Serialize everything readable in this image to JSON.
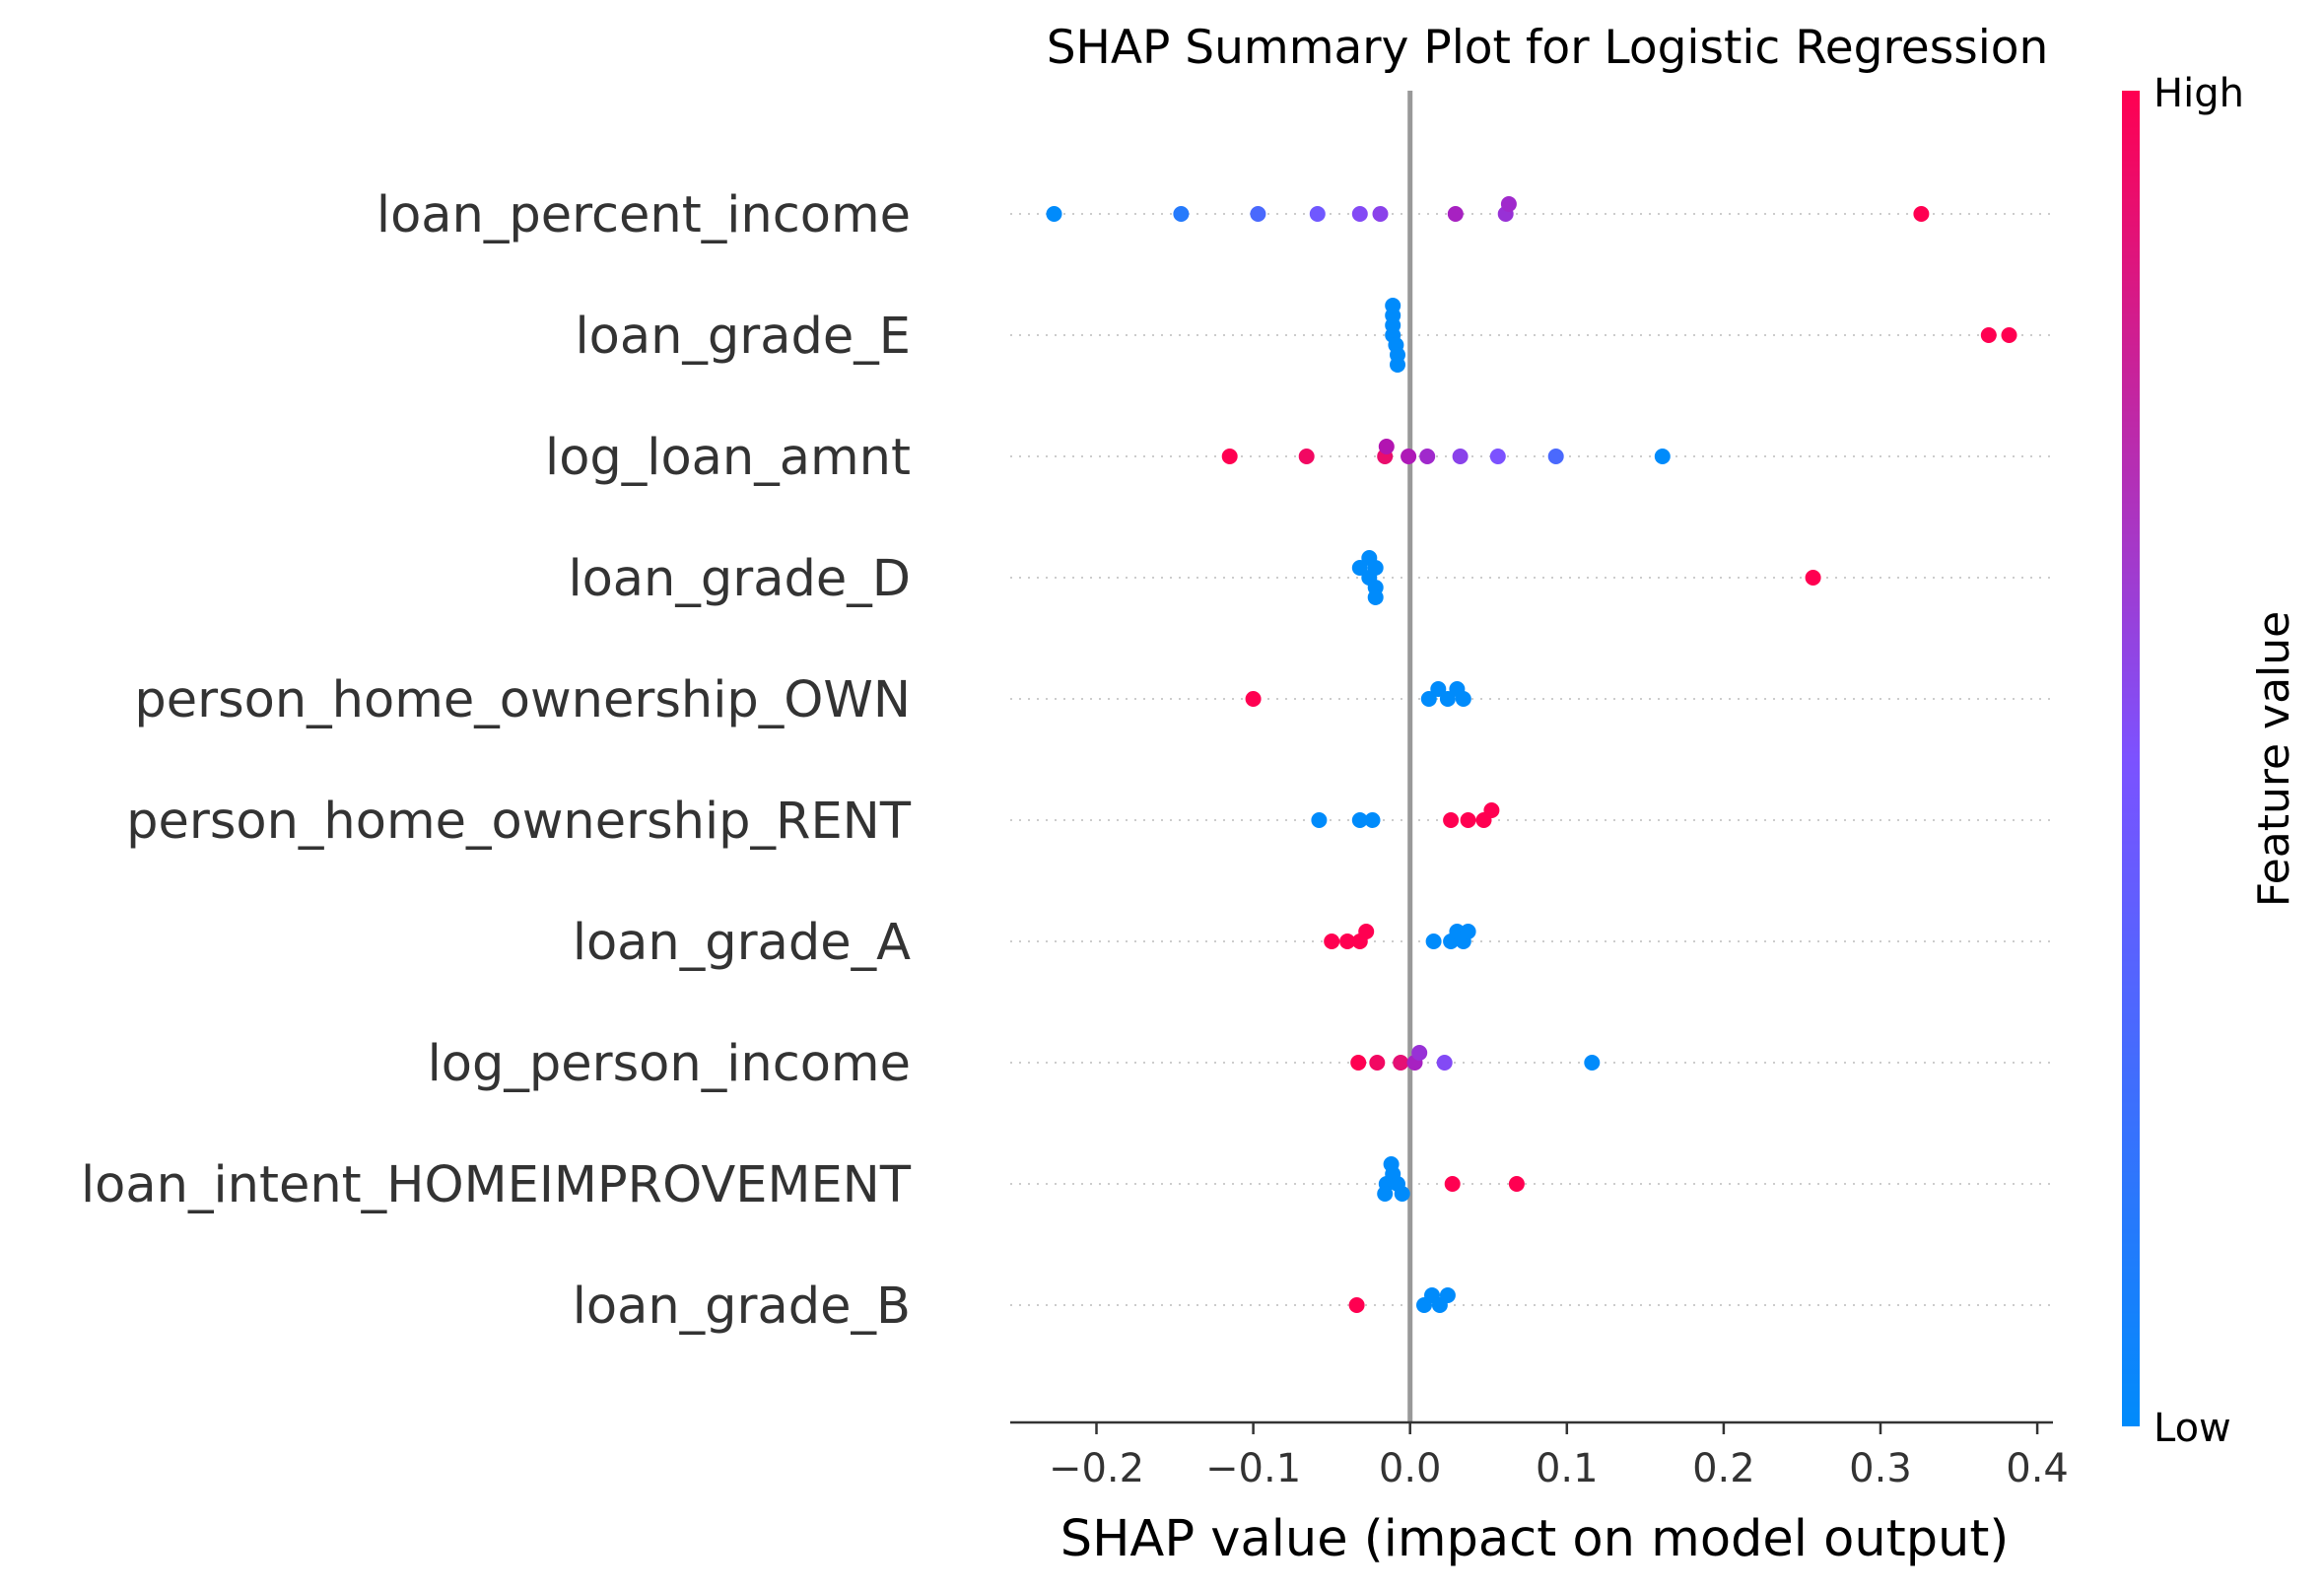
{
  "chart_data": {
    "type": "scatter",
    "title": "SHAP Summary Plot for Logistic Regression",
    "xlabel": "SHAP value (impact on model output)",
    "xlim": [
      -0.255,
      0.41
    ],
    "xticks": [
      -0.2,
      -0.1,
      0.0,
      0.1,
      0.2,
      0.3,
      0.4
    ],
    "xtick_labels": [
      "−0.2",
      "−0.1",
      "0.0",
      "0.1",
      "0.2",
      "0.3",
      "0.4"
    ],
    "colorbar": {
      "label": "Feature value",
      "high_label": "High",
      "low_label": "Low",
      "low_color": "#008bfb",
      "high_color": "#ff0051",
      "mid_color": "#c30098"
    },
    "features": [
      {
        "name": "loan_percent_income",
        "points": [
          {
            "x": -0.227,
            "v": 0.0
          },
          {
            "x": -0.146,
            "v": 0.15
          },
          {
            "x": -0.097,
            "v": 0.3
          },
          {
            "x": -0.059,
            "v": 0.45
          },
          {
            "x": -0.032,
            "v": 0.55
          },
          {
            "x": -0.019,
            "v": 0.6
          },
          {
            "x": 0.029,
            "v": 0.8
          },
          {
            "x": 0.061,
            "v": 0.7
          },
          {
            "x": 0.063,
            "v": 0.75
          },
          {
            "x": 0.326,
            "v": 1.0
          }
        ]
      },
      {
        "name": "loan_grade_E",
        "points": [
          {
            "x": -0.011,
            "v": 0.0
          },
          {
            "x": -0.011,
            "v": 0.0
          },
          {
            "x": -0.009,
            "v": 0.0
          },
          {
            "x": -0.011,
            "v": 0.0
          },
          {
            "x": -0.008,
            "v": 0.0
          },
          {
            "x": -0.011,
            "v": 0.0
          },
          {
            "x": -0.008,
            "v": 0.0
          },
          {
            "x": 0.369,
            "v": 1.0
          },
          {
            "x": 0.382,
            "v": 1.0
          }
        ]
      },
      {
        "name": "log_loan_amnt",
        "points": [
          {
            "x": -0.115,
            "v": 1.0
          },
          {
            "x": -0.066,
            "v": 0.95
          },
          {
            "x": -0.016,
            "v": 0.92
          },
          {
            "x": -0.015,
            "v": 0.88
          },
          {
            "x": -0.001,
            "v": 0.85
          },
          {
            "x": 0.011,
            "v": 0.75
          },
          {
            "x": 0.032,
            "v": 0.6
          },
          {
            "x": 0.056,
            "v": 0.5
          },
          {
            "x": 0.093,
            "v": 0.3
          },
          {
            "x": 0.161,
            "v": 0.0
          }
        ]
      },
      {
        "name": "loan_grade_D",
        "points": [
          {
            "x": -0.026,
            "v": 0.0
          },
          {
            "x": -0.022,
            "v": 0.0
          },
          {
            "x": -0.032,
            "v": 0.0
          },
          {
            "x": -0.022,
            "v": 0.0
          },
          {
            "x": -0.026,
            "v": 0.0
          },
          {
            "x": -0.022,
            "v": 0.0
          },
          {
            "x": 0.257,
            "v": 1.0
          }
        ]
      },
      {
        "name": "person_home_ownership_OWN",
        "points": [
          {
            "x": -0.1,
            "v": 1.0
          },
          {
            "x": 0.012,
            "v": 0.0
          },
          {
            "x": 0.018,
            "v": 0.0
          },
          {
            "x": 0.024,
            "v": 0.0
          },
          {
            "x": 0.03,
            "v": 0.0
          },
          {
            "x": 0.034,
            "v": 0.0
          }
        ]
      },
      {
        "name": "person_home_ownership_RENT",
        "points": [
          {
            "x": -0.058,
            "v": 0.0
          },
          {
            "x": -0.032,
            "v": 0.0
          },
          {
            "x": -0.024,
            "v": 0.0
          },
          {
            "x": 0.026,
            "v": 1.0
          },
          {
            "x": 0.037,
            "v": 1.0
          },
          {
            "x": 0.047,
            "v": 1.0
          },
          {
            "x": 0.052,
            "v": 1.0
          }
        ]
      },
      {
        "name": "loan_grade_A",
        "points": [
          {
            "x": -0.05,
            "v": 1.0
          },
          {
            "x": -0.04,
            "v": 1.0
          },
          {
            "x": -0.032,
            "v": 1.0
          },
          {
            "x": -0.028,
            "v": 1.0
          },
          {
            "x": 0.015,
            "v": 0.0
          },
          {
            "x": 0.026,
            "v": 0.0
          },
          {
            "x": 0.03,
            "v": 0.0
          },
          {
            "x": 0.034,
            "v": 0.0
          },
          {
            "x": 0.037,
            "v": 0.0
          }
        ]
      },
      {
        "name": "log_person_income",
        "points": [
          {
            "x": -0.033,
            "v": 1.0
          },
          {
            "x": -0.021,
            "v": 0.95
          },
          {
            "x": -0.006,
            "v": 0.9
          },
          {
            "x": 0.003,
            "v": 0.8
          },
          {
            "x": 0.006,
            "v": 0.7
          },
          {
            "x": 0.022,
            "v": 0.55
          },
          {
            "x": 0.116,
            "v": 0.0
          }
        ]
      },
      {
        "name": "loan_intent_HOMEIMPROVEMENT",
        "points": [
          {
            "x": -0.015,
            "v": 0.0
          },
          {
            "x": -0.011,
            "v": 0.0
          },
          {
            "x": -0.016,
            "v": 0.0
          },
          {
            "x": -0.012,
            "v": 0.0
          },
          {
            "x": -0.008,
            "v": 0.0
          },
          {
            "x": -0.005,
            "v": 0.0
          },
          {
            "x": 0.027,
            "v": 1.0
          },
          {
            "x": 0.068,
            "v": 1.0
          }
        ]
      },
      {
        "name": "loan_grade_B",
        "points": [
          {
            "x": -0.034,
            "v": 1.0
          },
          {
            "x": 0.009,
            "v": 0.0
          },
          {
            "x": 0.014,
            "v": 0.0
          },
          {
            "x": 0.019,
            "v": 0.0
          },
          {
            "x": 0.024,
            "v": 0.0
          }
        ]
      }
    ]
  }
}
